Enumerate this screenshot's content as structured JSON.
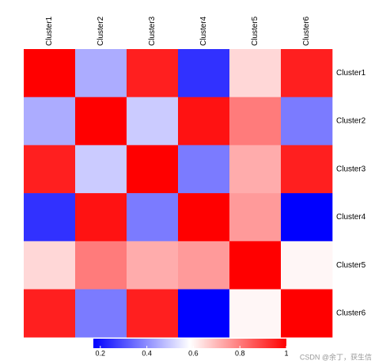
{
  "chart_data": {
    "type": "heatmap",
    "x_categories": [
      "Cluster1",
      "Cluster2",
      "Cluster3",
      "Cluster4",
      "Cluster5",
      "Cluster6"
    ],
    "y_categories": [
      "Cluster1",
      "Cluster2",
      "Cluster3",
      "Cluster4",
      "Cluster5",
      "Cluster6"
    ],
    "values": [
      [
        1,
        0.45,
        0.95,
        0.25,
        0.65,
        0.95
      ],
      [
        0.45,
        1,
        0.5,
        0.97,
        0.8,
        0.37
      ],
      [
        0.95,
        0.5,
        1,
        0.37,
        0.72,
        0.95
      ],
      [
        0.25,
        0.97,
        0.37,
        1,
        0.75,
        0.17
      ],
      [
        0.65,
        0.8,
        0.72,
        0.75,
        1,
        0.6
      ],
      [
        0.95,
        0.37,
        0.95,
        0.17,
        0.6,
        1
      ]
    ],
    "colors": [
      "#0000ff",
      "#ffffff",
      "#ff0000"
    ],
    "zlim": [
      0.17,
      1
    ],
    "colorbar_ticks": [
      0.2,
      0.4,
      0.6,
      0.8,
      1
    ],
    "watermark": "CSDN @余丁，获生信"
  }
}
